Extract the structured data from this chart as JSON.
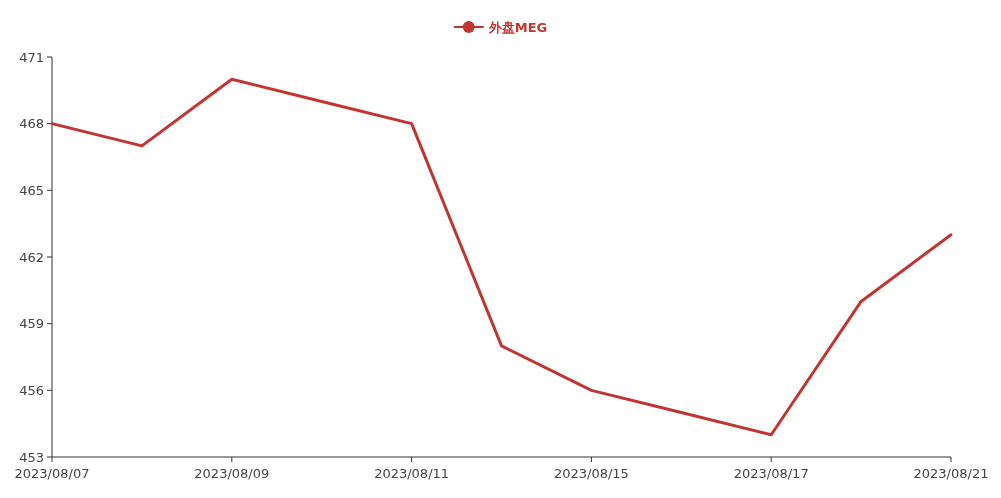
{
  "chart_data": {
    "type": "line",
    "categories": [
      "2023/08/07",
      null,
      "2023/08/09",
      null,
      "2023/08/11",
      null,
      "2023/08/15",
      null,
      "2023/08/17",
      null,
      "2023/08/21"
    ],
    "series": [
      {
        "name": "外盘MEG",
        "color": "#c23531",
        "values": [
          468,
          467,
          470,
          469,
          468,
          458,
          456,
          455,
          454,
          460,
          463
        ]
      }
    ],
    "ylim": [
      453,
      471
    ],
    "yticks": [
      453,
      456,
      459,
      462,
      465,
      468,
      471
    ],
    "grid": false,
    "legend": "top",
    "marker": "none",
    "line_style": "solid"
  }
}
